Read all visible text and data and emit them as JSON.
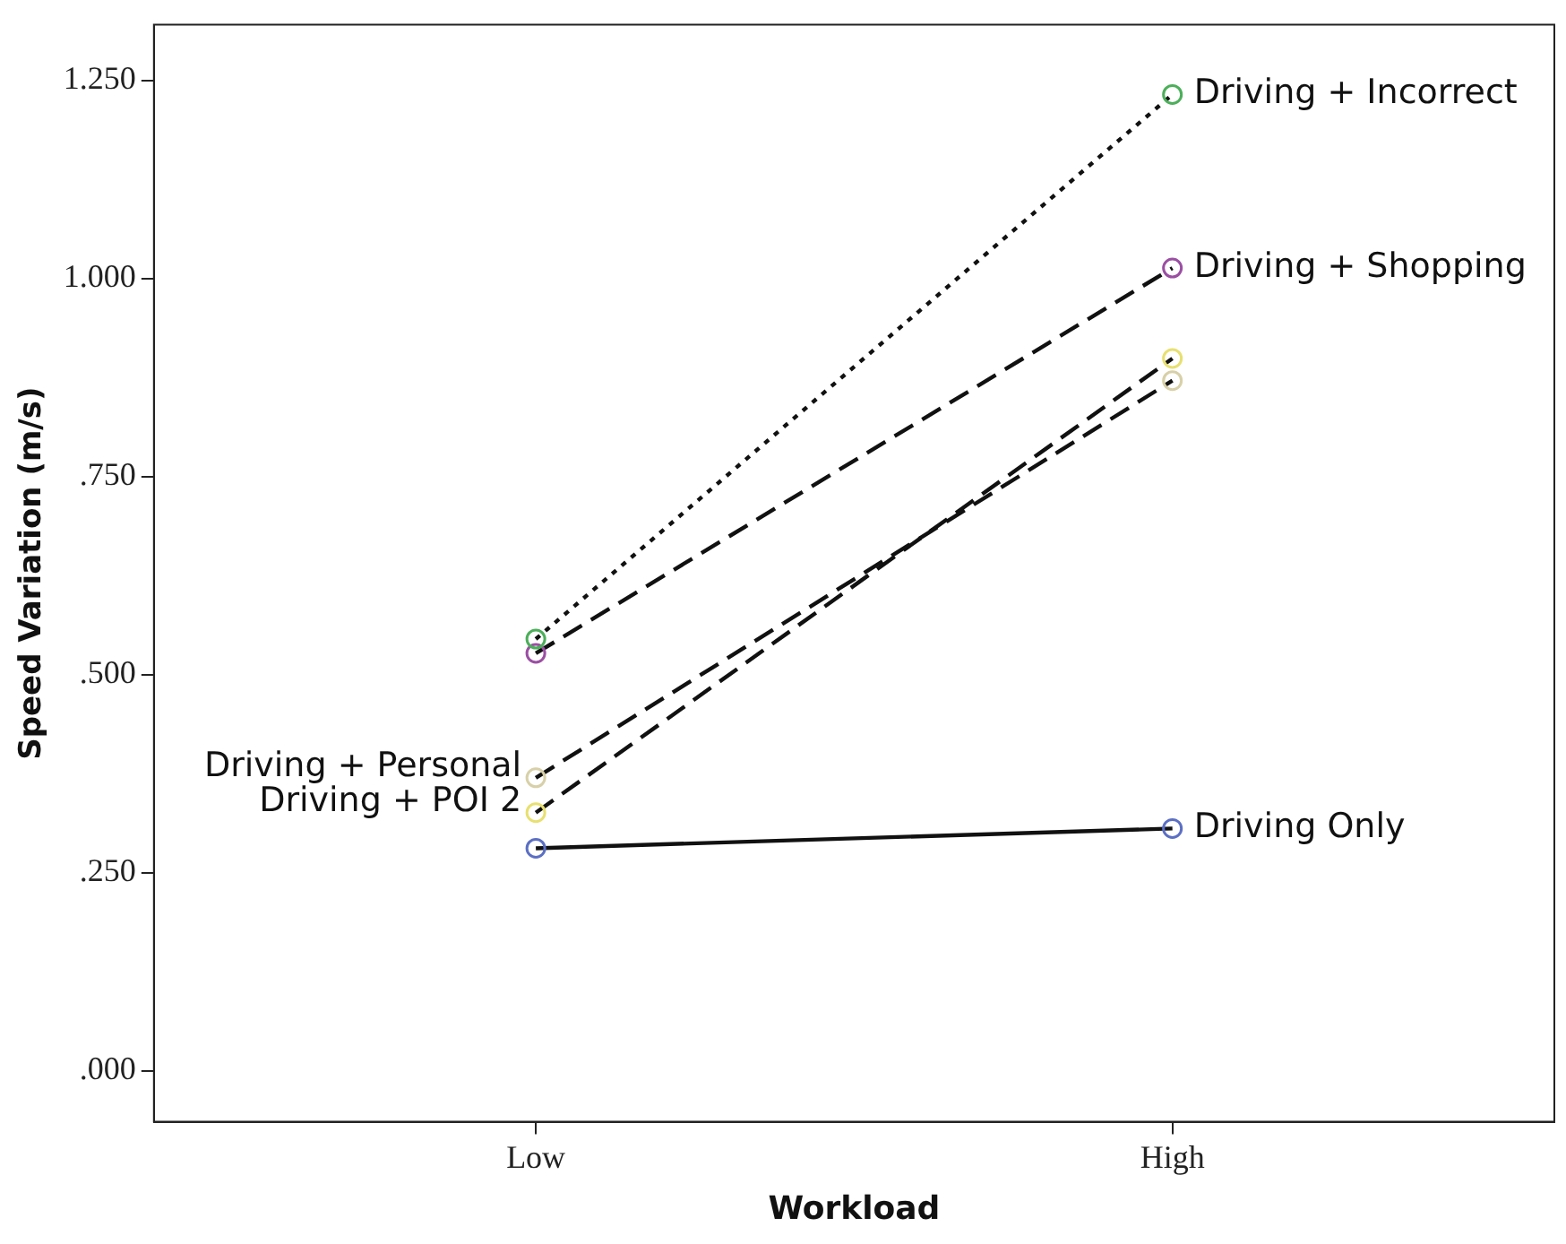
{
  "chart_data": {
    "type": "line",
    "xlabel": "Workload",
    "ylabel": "Speed Variation (m/s)",
    "categories": [
      "Low",
      "High"
    ],
    "ylim": [
      -0.064,
      1.32
    ],
    "yticks": [
      {
        "value": 0,
        "label": ".000"
      },
      {
        "value": 0.25,
        "label": ".250"
      },
      {
        "value": 0.5,
        "label": ".500"
      },
      {
        "value": 0.75,
        "label": ".750"
      },
      {
        "value": 1,
        "label": "1.000"
      },
      {
        "value": 1.25,
        "label": "1.250"
      }
    ],
    "grid": false,
    "legend": false,
    "marker": "circle",
    "series": [
      {
        "color": "#5b6fc4",
        "line_style": "solid",
        "values": [
          0.281,
          0.306
        ]
      },
      {
        "color": "#4caf5a",
        "line_style": "dotted",
        "values": [
          0.545,
          1.232
        ]
      },
      {
        "color": "#9b4fa3",
        "line_style": "dashed",
        "values": [
          0.527,
          1.013
        ]
      },
      {
        "color": "#d8d0a8",
        "line_style": "dashed",
        "values": [
          0.37,
          0.871
        ]
      },
      {
        "color": "#e8e070",
        "line_style": "dashed",
        "values": [
          0.326,
          0.899
        ]
      }
    ],
    "annotations": [
      {
        "text": "Driving Only",
        "x": "High",
        "y": 0.306
      },
      {
        "text": "Driving + Incorrect",
        "x": "High",
        "y": 1.232
      },
      {
        "text": "Driving + Shopping",
        "x": "High",
        "y": 1.013
      },
      {
        "text": "Driving + Personal",
        "x": "Low",
        "y": 0.37
      },
      {
        "text": "Driving + POI 2",
        "x": "Low",
        "y": 0.326
      }
    ]
  }
}
